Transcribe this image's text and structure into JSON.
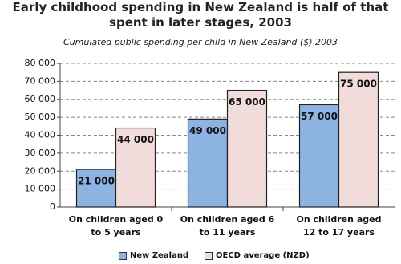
{
  "chart_data": {
    "type": "bar",
    "title": "Early childhood spending in New Zealand is half of that spent in later stages, 2003",
    "subtitle": "Cumulated public spending per child in New Zealand ($) 2003",
    "categories": [
      "On children aged 0 to 5 years",
      "On children aged 6 to 11 years",
      "On children aged 12 to 17 years"
    ],
    "series": [
      {
        "name": "New Zealand",
        "color": "#8db3e2",
        "values": [
          21000,
          49000,
          57000
        ],
        "value_labels": [
          "21 000",
          "49 000",
          "57 000"
        ]
      },
      {
        "name": "OECD average (NZD)",
        "color": "#f2dcdb",
        "values": [
          44000,
          65000,
          75000
        ],
        "value_labels": [
          "44 000",
          "65 000",
          "75 000"
        ]
      }
    ],
    "ylim": [
      0,
      80000
    ],
    "yticks": [
      0,
      {
        "value": 10000,
        "label": "10 000"
      },
      {
        "value": 20000,
        "label": "20 000"
      },
      {
        "value": 30000,
        "label": "30 000"
      },
      {
        "value": 40000,
        "label": "40 000"
      },
      {
        "value": 50000,
        "label": "50 000"
      },
      {
        "value": 60000,
        "label": "60 000"
      },
      {
        "value": 70000,
        "label": "70 000"
      },
      {
        "value": 80000,
        "label": "80 000"
      }
    ],
    "grid": true
  }
}
